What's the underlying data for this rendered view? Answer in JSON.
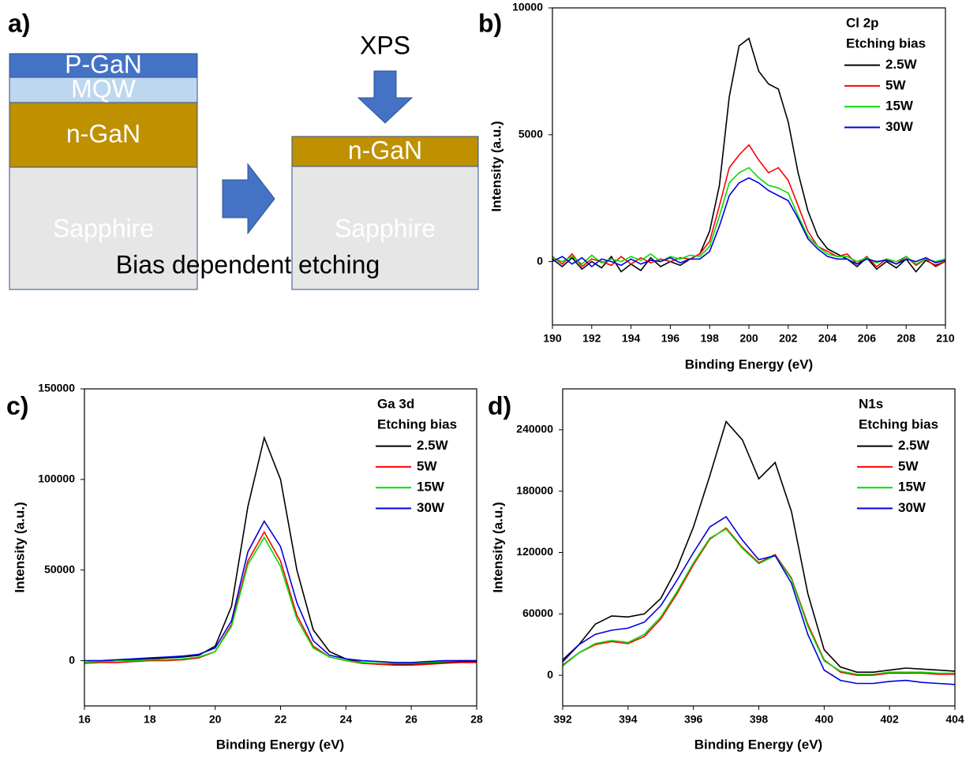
{
  "diagram": {
    "panel": "a)",
    "left_stack": [
      "P-GaN",
      "MQW",
      "n-GaN",
      "Sapphire"
    ],
    "right_stack": [
      "n-GaN",
      "Sapphire"
    ],
    "probe": "XPS",
    "caption": "Bias dependent etching"
  },
  "chart_data": [
    {
      "type": "line",
      "panel": "b)",
      "x_label": "Binding Energy (eV)",
      "y_label": "Intensity (a.u.)",
      "legend_title": [
        "Cl 2p",
        "Etching bias"
      ],
      "legend": "upper right",
      "xlim": [
        190,
        210
      ],
      "ylim": [
        -2500,
        10000
      ],
      "xticks": [
        190,
        192,
        194,
        196,
        198,
        200,
        202,
        204,
        206,
        208,
        210
      ],
      "yticks": [
        0,
        5000,
        10000
      ],
      "x": [
        190,
        190.5,
        191,
        191.5,
        192,
        192.5,
        193,
        193.5,
        194,
        194.5,
        195,
        195.5,
        196,
        196.5,
        197,
        197.5,
        198,
        198.5,
        199,
        199.5,
        200,
        200.5,
        201,
        201.5,
        202,
        202.5,
        203,
        203.5,
        204,
        204.5,
        205,
        205.5,
        206,
        206.5,
        207,
        207.5,
        208,
        208.5,
        209,
        209.5,
        210
      ],
      "series": [
        {
          "name": "2.5W",
          "color": "#000000",
          "values": [
            100,
            -200,
            150,
            -300,
            0,
            -250,
            200,
            -400,
            -100,
            -350,
            150,
            -200,
            0,
            -150,
            100,
            300,
            1200,
            3000,
            6500,
            8500,
            8800,
            7500,
            7000,
            6800,
            5500,
            3500,
            2000,
            1000,
            500,
            300,
            100,
            -200,
            150,
            -300,
            0,
            -250,
            100,
            -400,
            50,
            -150,
            0
          ]
        },
        {
          "name": "5W",
          "color": "#ff0000",
          "values": [
            200,
            -100,
            300,
            -200,
            100,
            0,
            -150,
            200,
            -100,
            150,
            -50,
            100,
            0,
            150,
            100,
            300,
            800,
            2200,
            3700,
            4200,
            4600,
            4000,
            3500,
            3700,
            3200,
            2200,
            1200,
            600,
            400,
            200,
            300,
            -100,
            200,
            -200,
            100,
            -100,
            200,
            -150,
            100,
            -200,
            0
          ]
        },
        {
          "name": "15W",
          "color": "#00dd00",
          "values": [
            150,
            0,
            200,
            -100,
            250,
            -50,
            100,
            0,
            200,
            50,
            300,
            0,
            200,
            100,
            250,
            200,
            600,
            1800,
            3100,
            3500,
            3700,
            3300,
            3000,
            2900,
            2700,
            1800,
            1000,
            600,
            300,
            200,
            200,
            0,
            150,
            -50,
            100,
            0,
            200,
            -100,
            100,
            0,
            100
          ]
        },
        {
          "name": "30W",
          "color": "#0000dd",
          "values": [
            0,
            200,
            -100,
            150,
            -200,
            100,
            0,
            -150,
            100,
            -100,
            50,
            0,
            150,
            -50,
            100,
            100,
            400,
            1400,
            2600,
            3100,
            3300,
            3100,
            2800,
            2600,
            2400,
            1700,
            900,
            500,
            200,
            100,
            100,
            -100,
            100,
            0,
            50,
            -100,
            100,
            0,
            150,
            -50,
            50
          ]
        }
      ]
    },
    {
      "type": "line",
      "panel": "c)",
      "x_label": "Binding Energy (eV)",
      "y_label": "Intensity (a.u.)",
      "legend_title": [
        "Ga 3d",
        "Etching bias"
      ],
      "legend": "upper right",
      "xlim": [
        16,
        28
      ],
      "ylim": [
        -25000,
        150000
      ],
      "xticks": [
        16,
        18,
        20,
        22,
        24,
        26,
        28
      ],
      "yticks": [
        0,
        50000,
        100000,
        150000
      ],
      "x": [
        16,
        16.5,
        17,
        17.5,
        18,
        18.5,
        19,
        19.5,
        20,
        20.5,
        21,
        21.5,
        22,
        22.5,
        23,
        23.5,
        24,
        24.5,
        25,
        25.5,
        26,
        26.5,
        27,
        27.5,
        28
      ],
      "series": [
        {
          "name": "2.5W",
          "color": "#000000",
          "values": [
            -1000,
            -500,
            0,
            500,
            1000,
            1500,
            2000,
            3000,
            8000,
            30000,
            85000,
            123000,
            100000,
            50000,
            17000,
            5000,
            1000,
            -1000,
            -2000,
            -2000,
            -2000,
            -1500,
            -1000,
            -500,
            -500
          ]
        },
        {
          "name": "5W",
          "color": "#ff0000",
          "values": [
            -1500,
            -1000,
            -1000,
            -500,
            0,
            0,
            500,
            1500,
            5000,
            20000,
            55000,
            71000,
            55000,
            25000,
            8000,
            2000,
            0,
            -1500,
            -2000,
            -2500,
            -2500,
            -2000,
            -1500,
            -1000,
            -1000
          ]
        },
        {
          "name": "15W",
          "color": "#00dd00",
          "values": [
            -1000,
            -500,
            0,
            0,
            500,
            500,
            1000,
            2000,
            5000,
            19000,
            53000,
            68000,
            52000,
            23000,
            7000,
            2000,
            0,
            -1000,
            -1500,
            -1500,
            -1500,
            -1000,
            -500,
            0,
            0
          ]
        },
        {
          "name": "30W",
          "color": "#0000dd",
          "values": [
            0,
            0,
            500,
            1000,
            1500,
            2000,
            2500,
            3500,
            7000,
            22000,
            60000,
            77000,
            63000,
            32000,
            11000,
            3000,
            1000,
            0,
            -500,
            -1000,
            -1000,
            -500,
            0,
            0,
            0
          ]
        }
      ]
    },
    {
      "type": "line",
      "panel": "d)",
      "x_label": "Binding Energy (eV)",
      "y_label": "Intensity (a.u.)",
      "legend_title": [
        "N1s",
        "Etching bias"
      ],
      "legend": "upper right",
      "xlim": [
        392,
        404
      ],
      "ylim": [
        -30000,
        280000
      ],
      "xticks": [
        392,
        394,
        396,
        398,
        400,
        402,
        404
      ],
      "yticks": [
        0,
        60000,
        120000,
        180000,
        240000
      ],
      "x": [
        392,
        392.5,
        393,
        393.5,
        394,
        394.5,
        395,
        395.5,
        396,
        396.5,
        397,
        397.5,
        398,
        398.5,
        399,
        399.5,
        400,
        400.5,
        401,
        401.5,
        402,
        402.5,
        403,
        403.5,
        404
      ],
      "series": [
        {
          "name": "2.5W",
          "color": "#000000",
          "values": [
            15000,
            30000,
            50000,
            58000,
            57000,
            60000,
            75000,
            105000,
            145000,
            195000,
            248000,
            230000,
            192000,
            208000,
            160000,
            80000,
            25000,
            8000,
            3000,
            3000,
            5000,
            7000,
            6000,
            5000,
            4000
          ]
        },
        {
          "name": "5W",
          "color": "#ff0000",
          "values": [
            10000,
            22000,
            30000,
            33000,
            31000,
            38000,
            55000,
            80000,
            108000,
            133000,
            144000,
            125000,
            110000,
            118000,
            95000,
            50000,
            15000,
            3000,
            0,
            0,
            2000,
            2000,
            2000,
            1000,
            1000
          ]
        },
        {
          "name": "15W",
          "color": "#00dd00",
          "values": [
            9000,
            22000,
            31000,
            34000,
            32000,
            40000,
            57000,
            82000,
            110000,
            134000,
            143000,
            124000,
            109000,
            117000,
            94000,
            48000,
            14000,
            4000,
            1000,
            1000,
            3000,
            3000,
            3000,
            2000,
            2000
          ]
        },
        {
          "name": "30W",
          "color": "#0000dd",
          "values": [
            13000,
            30000,
            40000,
            44000,
            46000,
            52000,
            68000,
            93000,
            120000,
            145000,
            155000,
            132000,
            113000,
            117000,
            90000,
            40000,
            5000,
            -5000,
            -8000,
            -8000,
            -6000,
            -5000,
            -7000,
            -8000,
            -9000
          ]
        }
      ]
    }
  ]
}
